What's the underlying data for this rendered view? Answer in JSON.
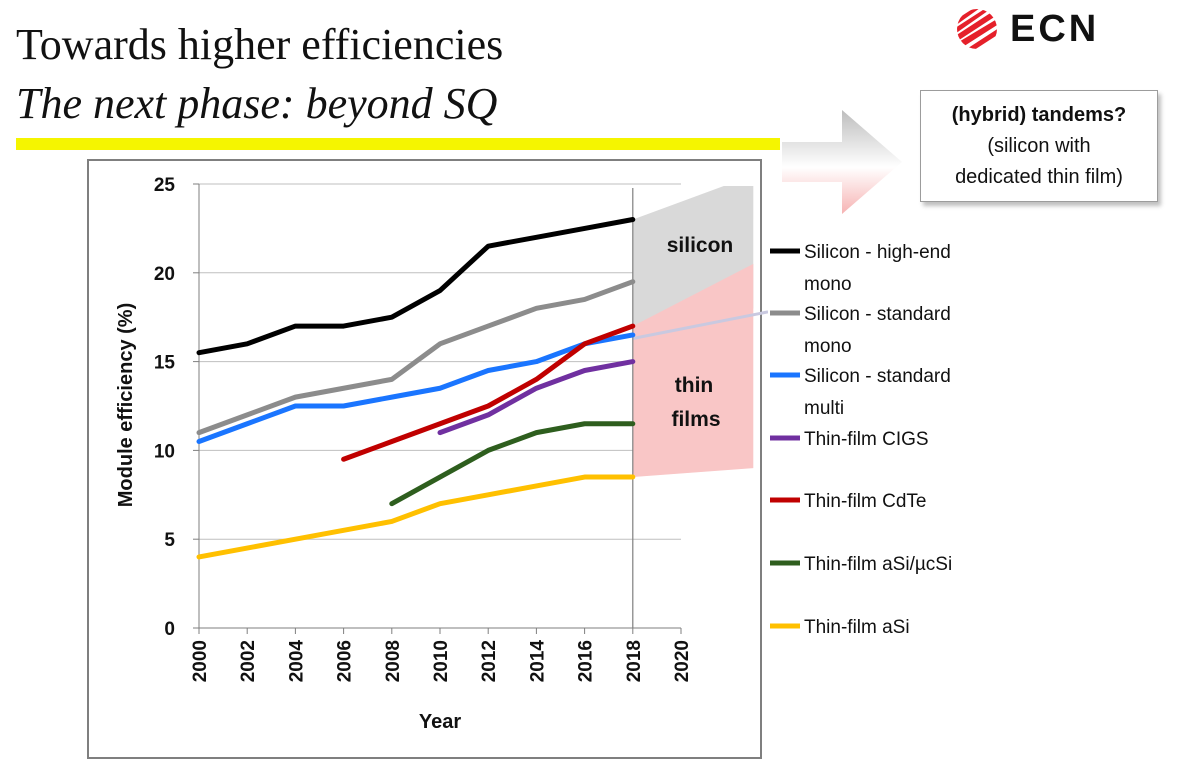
{
  "slide": {
    "title": "Towards higher efficiencies",
    "subtitle": "The next phase: beyond SQ",
    "logo_text": "ECN",
    "callout": {
      "title": "(hybrid) tandems?",
      "line1": "(silicon with",
      "line2": "dedicated thin film)"
    },
    "region_labels": {
      "silicon": "silicon",
      "thin_line1": "thin",
      "thin_line2": "films"
    },
    "colors": {
      "yellow_bar": "#f5f500",
      "logo_red": "#e5202a",
      "silicon_region": "#d9d9d9",
      "thin_region": "#f9c6c6"
    }
  },
  "chart_data": {
    "type": "line",
    "xlabel": "Year",
    "ylabel": "Module efficiency (%)",
    "xlim": [
      2000,
      2020
    ],
    "ylim": [
      0,
      25
    ],
    "x_ticks": [
      "2000",
      "2002",
      "2004",
      "2006",
      "2008",
      "2010",
      "2012",
      "2014",
      "2016",
      "2018",
      "2020"
    ],
    "y_ticks": [
      "0",
      "5",
      "10",
      "15",
      "20",
      "25"
    ],
    "grid": "horizontal",
    "legend_position": "right",
    "vertical_marker_x": 2018,
    "projection_regions": [
      {
        "name": "silicon",
        "x": [
          2018,
          2023
        ],
        "lower": [
          16.3,
          18.0
        ],
        "upper": [
          23.0,
          25.5
        ],
        "color": "#d9d9d9"
      },
      {
        "name": "thin films",
        "x": [
          2018,
          2023
        ],
        "lower": [
          8.5,
          9.0
        ],
        "upper": [
          17.0,
          20.5
        ],
        "color": "#f9c6c6"
      }
    ],
    "series": [
      {
        "name": "Silicon - high-end mono",
        "color": "#000000",
        "x": [
          2000,
          2002,
          2004,
          2006,
          2008,
          2010,
          2012,
          2014,
          2016,
          2018
        ],
        "y": [
          15.5,
          16.0,
          17.0,
          17.0,
          17.5,
          19.0,
          21.5,
          22.0,
          22.5,
          23.0
        ]
      },
      {
        "name": "Silicon - standard mono",
        "color": "#8c8c8c",
        "x": [
          2000,
          2002,
          2004,
          2006,
          2008,
          2010,
          2012,
          2014,
          2016,
          2018
        ],
        "y": [
          11.0,
          12.0,
          13.0,
          13.5,
          14.0,
          16.0,
          17.0,
          18.0,
          18.5,
          19.5
        ]
      },
      {
        "name": "Silicon - standard multi",
        "color": "#1a75ff",
        "x": [
          2000,
          2002,
          2004,
          2006,
          2008,
          2010,
          2012,
          2014,
          2016,
          2018
        ],
        "y": [
          10.5,
          11.5,
          12.5,
          12.5,
          13.0,
          13.5,
          14.5,
          15.0,
          16.0,
          16.5
        ]
      },
      {
        "name": "Thin-film CIGS",
        "color": "#7030a0",
        "x": [
          2010,
          2012,
          2014,
          2016,
          2018
        ],
        "y": [
          11.0,
          12.0,
          13.5,
          14.5,
          15.0
        ]
      },
      {
        "name": "Thin-film CdTe",
        "color": "#c00000",
        "x": [
          2006,
          2008,
          2010,
          2012,
          2014,
          2016,
          2018
        ],
        "y": [
          9.5,
          10.5,
          11.5,
          12.5,
          14.0,
          16.0,
          17.0
        ]
      },
      {
        "name": "Thin-film aSi/µcSi",
        "color": "#2e5e1e",
        "x": [
          2008,
          2010,
          2012,
          2014,
          2016,
          2018
        ],
        "y": [
          7.0,
          8.5,
          10.0,
          11.0,
          11.5,
          11.5
        ]
      },
      {
        "name": "Thin-film aSi",
        "color": "#ffc000",
        "x": [
          2000,
          2002,
          2004,
          2006,
          2008,
          2010,
          2012,
          2014,
          2016,
          2018
        ],
        "y": [
          4.0,
          4.5,
          5.0,
          5.5,
          6.0,
          7.0,
          7.5,
          8.0,
          8.5,
          8.5
        ]
      }
    ]
  }
}
